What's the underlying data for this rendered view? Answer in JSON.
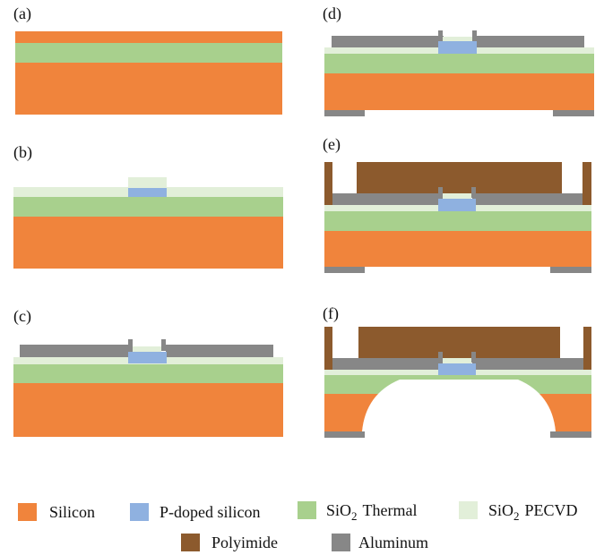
{
  "panels": [
    {
      "label": "(a)"
    },
    {
      "label": "(b)"
    },
    {
      "label": "(c)"
    },
    {
      "label": "(d)"
    },
    {
      "label": "(e)"
    },
    {
      "label": "(f)"
    }
  ],
  "legend": [
    {
      "label": "Silicon"
    },
    {
      "label": "P-doped silicon"
    },
    {
      "label": "SiO",
      "subscript": "2",
      "suffix": "Thermal"
    },
    {
      "label": "SiO",
      "subscript": "2",
      "suffix": "PECVD"
    },
    {
      "label": "Polyimide"
    },
    {
      "label": "Aluminum"
    }
  ]
}
